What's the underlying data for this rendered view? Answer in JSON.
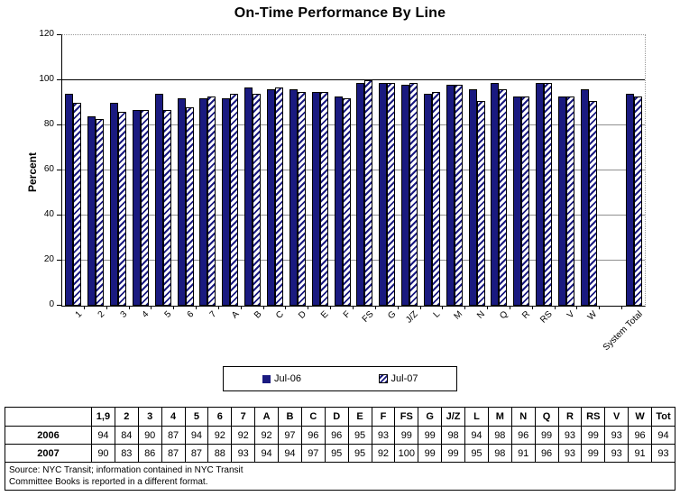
{
  "title": "On-Time Performance By Line",
  "colors": {
    "navy": "#1a1a80",
    "grid_minor": "#909090",
    "grid_major": "#000000"
  },
  "chart_data": {
    "type": "bar",
    "title": "On-Time Performance By Line",
    "xlabel": "",
    "ylabel": "Percent",
    "ylim": [
      0,
      120
    ],
    "yticks": [
      0,
      20,
      40,
      60,
      80,
      100,
      120
    ],
    "grid": true,
    "legend_position": "bottom",
    "gap_before_last": true,
    "categories": [
      "1",
      "2",
      "3",
      "4",
      "5",
      "6",
      "7",
      "A",
      "B",
      "C",
      "D",
      "E",
      "F",
      "FS",
      "G",
      "J/Z",
      "L",
      "M",
      "N",
      "Q",
      "R",
      "RS",
      "V",
      "W",
      "System Total"
    ],
    "series": [
      {
        "name": "Jul-06",
        "style": "solid",
        "values": [
          94,
          84,
          90,
          87,
          94,
          92,
          92,
          92,
          97,
          96,
          96,
          95,
          93,
          99,
          99,
          98,
          94,
          98,
          96,
          99,
          93,
          99,
          93,
          96,
          94
        ]
      },
      {
        "name": "Jul-07",
        "style": "hatched",
        "values": [
          90,
          83,
          86,
          87,
          87,
          88,
          93,
          94,
          94,
          97,
          95,
          95,
          92,
          100,
          99,
          99,
          95,
          98,
          91,
          96,
          93,
          99,
          93,
          91,
          93
        ]
      }
    ]
  },
  "table": {
    "columns": [
      "",
      "1,9",
      "2",
      "3",
      "4",
      "5",
      "6",
      "7",
      "A",
      "B",
      "C",
      "D",
      "E",
      "F",
      "FS",
      "G",
      "J/Z",
      "L",
      "M",
      "N",
      "Q",
      "R",
      "RS",
      "V",
      "W",
      "Tot"
    ],
    "rows": [
      {
        "label": "2006",
        "values": [
          94,
          84,
          90,
          87,
          94,
          92,
          92,
          92,
          97,
          96,
          96,
          95,
          93,
          99,
          99,
          98,
          94,
          98,
          96,
          99,
          93,
          99,
          93,
          96,
          94
        ]
      },
      {
        "label": "2007",
        "values": [
          90,
          83,
          86,
          87,
          87,
          88,
          93,
          94,
          94,
          97,
          95,
          95,
          92,
          100,
          99,
          99,
          95,
          98,
          91,
          96,
          93,
          99,
          93,
          91,
          93
        ]
      }
    ],
    "note_lines": [
      "Source: NYC Transit; information contained in NYC Transit",
      "Committee Books is reported in a different format."
    ]
  }
}
